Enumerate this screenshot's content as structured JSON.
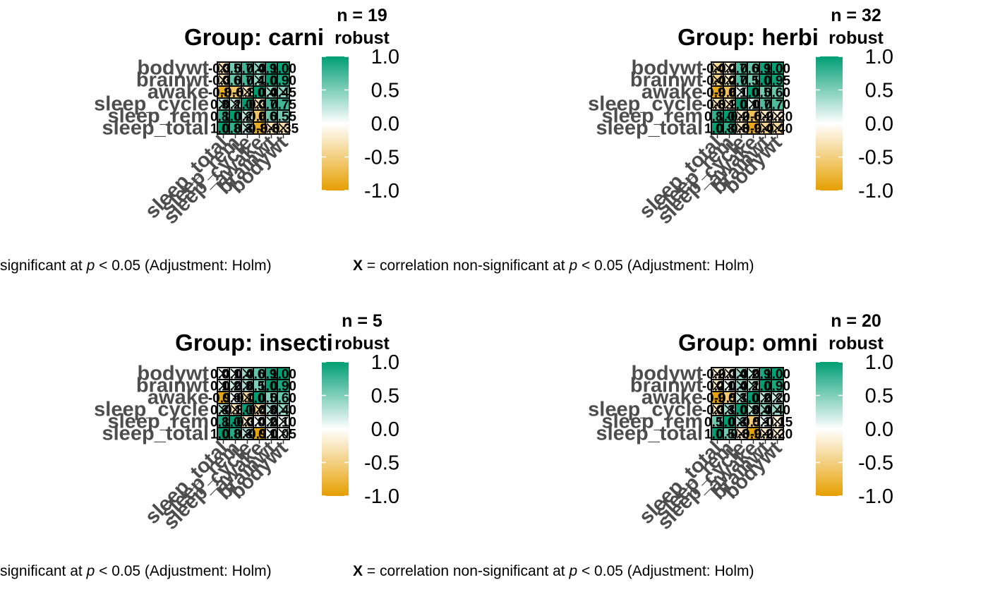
{
  "legend": {
    "title": "robust",
    "ticks": [
      "1.0",
      "0.5",
      "0.0",
      "-0.5",
      "-1.0"
    ],
    "tick_values": [
      1.0,
      0.5,
      0.0,
      -0.5,
      -1.0
    ],
    "colors": {
      "high": "#009E73",
      "mid": "#FFFFFF",
      "low": "#E69F00"
    }
  },
  "caption": {
    "prefix": "X",
    "text_before_p": " = correlation non-significant at ",
    "p_symbol": "p",
    "text_after_p": " < 0.05 (Adjustment: Holm)",
    "visible_left_fragment": "significant at "
  },
  "chart_data": [
    {
      "type": "heatmap",
      "title": "Group: carni",
      "n_label": "n = 19",
      "y_categories": [
        "bodywt",
        "brainwt",
        "awake",
        "sleep_cycle",
        "sleep_rem",
        "sleep_total"
      ],
      "x_categories": [
        "sleep_total",
        "sleep_rem",
        "sleep_cycle",
        "awake",
        "brainwt",
        "bodywt"
      ],
      "values": [
        [
          -0.35,
          0.55,
          0.75,
          0.45,
          0.9,
          1.0
        ],
        [
          -0.3,
          0.6,
          0.75,
          0.4,
          1.0,
          0.9
        ],
        [
          -0.85,
          -0.6,
          -0.3,
          1.0,
          0.4,
          0.45
        ],
        [
          0.3,
          0.25,
          1.0,
          -0.3,
          0.75,
          0.75
        ],
        [
          0.8,
          1.0,
          0.25,
          -0.6,
          0.6,
          0.55
        ],
        [
          1.0,
          0.8,
          0.3,
          -0.85,
          -0.3,
          -0.35
        ]
      ],
      "color_range": [
        -1,
        1
      ],
      "legend_title": "robust"
    },
    {
      "type": "heatmap",
      "title": "Group: herbi",
      "n_label": "n = 32",
      "y_categories": [
        "bodywt",
        "brainwt",
        "awake",
        "sleep_cycle",
        "sleep_rem",
        "sleep_total"
      ],
      "x_categories": [
        "sleep_total",
        "sleep_rem",
        "sleep_cycle",
        "awake",
        "brainwt",
        "bodywt"
      ],
      "values": [
        [
          -0.4,
          -0.2,
          0.7,
          0.6,
          0.95,
          1.0
        ],
        [
          -0.45,
          -0.25,
          0.7,
          0.55,
          1.0,
          0.95
        ],
        [
          -0.9,
          -0.65,
          0.15,
          1.0,
          0.55,
          0.6
        ],
        [
          -0.3,
          -0.25,
          1.0,
          0.15,
          0.7,
          0.7
        ],
        [
          0.8,
          1.0,
          -0.25,
          -0.65,
          -0.25,
          -0.2
        ],
        [
          1.0,
          0.8,
          -0.3,
          -0.9,
          -0.45,
          -0.4
        ]
      ],
      "color_range": [
        -1,
        1
      ],
      "legend_title": "robust"
    },
    {
      "type": "heatmap",
      "title": "Group: insecti",
      "n_label": "n = 5",
      "y_categories": [
        "bodywt",
        "brainwt",
        "awake",
        "sleep_cycle",
        "sleep_rem",
        "sleep_total"
      ],
      "x_categories": [
        "sleep_total",
        "sleep_rem",
        "sleep_cycle",
        "awake",
        "brainwt",
        "bodywt"
      ],
      "values": [
        [
          0.05,
          0.1,
          0.4,
          0.6,
          0.9,
          1.0
        ],
        [
          0.1,
          0.2,
          0.35,
          0.5,
          1.0,
          0.9
        ],
        [
          -0.95,
          0.05,
          -0.4,
          1.0,
          0.5,
          0.6
        ],
        [
          0.3,
          -0.3,
          1.0,
          -0.4,
          0.35,
          0.4
        ],
        [
          0.85,
          1.0,
          -0.3,
          0.05,
          0.2,
          0.1
        ],
        [
          1.0,
          0.85,
          0.3,
          -0.95,
          0.1,
          0.05
        ]
      ],
      "color_range": [
        -1,
        1
      ],
      "legend_title": "robust"
    },
    {
      "type": "heatmap",
      "title": "Group: omni",
      "n_label": "n = 20",
      "y_categories": [
        "bodywt",
        "brainwt",
        "awake",
        "sleep_cycle",
        "sleep_rem",
        "sleep_total"
      ],
      "x_categories": [
        "sleep_total",
        "sleep_rem",
        "sleep_cycle",
        "awake",
        "brainwt",
        "bodywt"
      ],
      "values": [
        [
          -0.2,
          -0.15,
          0.4,
          0.2,
          0.9,
          1.0
        ],
        [
          -0.25,
          0.1,
          0.45,
          0.25,
          1.0,
          0.9
        ],
        [
          -0.95,
          -0.55,
          0.3,
          1.0,
          0.25,
          0.2
        ],
        [
          -0.3,
          0.35,
          1.0,
          0.3,
          0.45,
          0.4
        ],
        [
          0.55,
          1.0,
          0.35,
          -0.55,
          0.1,
          -0.15
        ],
        [
          1.0,
          0.55,
          -0.3,
          -0.95,
          -0.25,
          -0.2
        ]
      ],
      "color_range": [
        -1,
        1
      ],
      "legend_title": "robust"
    }
  ]
}
